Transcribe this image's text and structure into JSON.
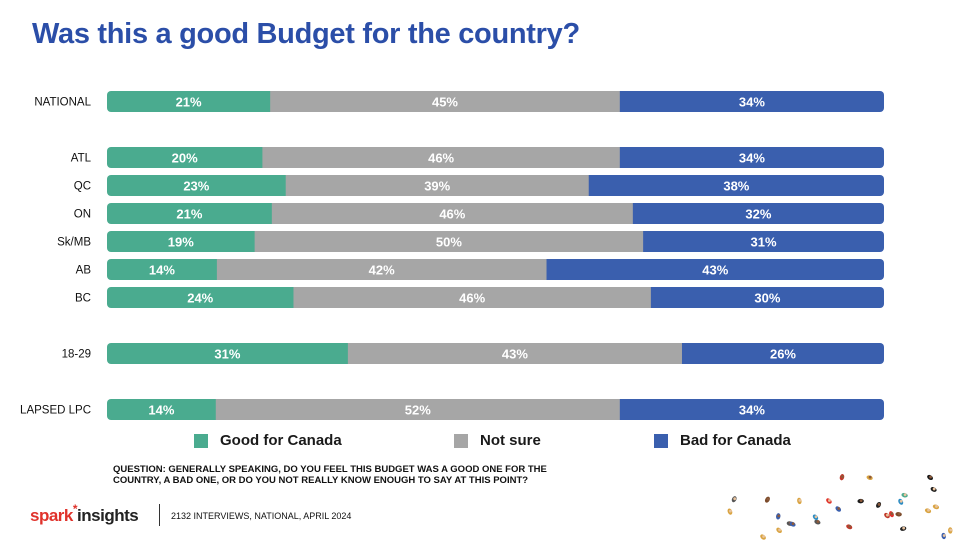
{
  "title": "Was this a good Budget for the country?",
  "chart_data": {
    "type": "bar",
    "orientation": "horizontal",
    "stacked": "100%",
    "categories": [
      "NATIONAL",
      "ATL",
      "QC",
      "ON",
      "Sk/MB",
      "AB",
      "BC",
      "18-29",
      "LAPSED LPC"
    ],
    "groups": [
      [
        "NATIONAL"
      ],
      [
        "ATL",
        "QC",
        "ON",
        "Sk/MB",
        "AB",
        "BC"
      ],
      [
        "18-29"
      ],
      [
        "LAPSED LPC"
      ]
    ],
    "series": [
      {
        "name": "Good for Canada",
        "color": "#4aab8f",
        "values": [
          21,
          20,
          23,
          21,
          19,
          14,
          24,
          31,
          14
        ]
      },
      {
        "name": "Not sure",
        "color": "#a6a6a6",
        "values": [
          45,
          46,
          39,
          46,
          50,
          42,
          46,
          43,
          52
        ]
      },
      {
        "name": "Bad for Canada",
        "color": "#3a5fae",
        "values": [
          34,
          34,
          38,
          32,
          31,
          43,
          30,
          26,
          34
        ]
      }
    ],
    "data_label_suffix": "%",
    "legend_position": "bottom"
  },
  "question": "QUESTION: GENERALLY SPEAKING, DO YOU FEEL THIS BUDGET WAS A GOOD ONE FOR THE COUNTRY, A BAD ONE, OR DO YOU NOT REALLY KNOW ENOUGH TO SAY AT THIS POINT?",
  "footer": {
    "logo_part1": "spark",
    "logo_part2": "insights",
    "note": "2132 INTERVIEWS, NATIONAL, APRIL 2024"
  }
}
